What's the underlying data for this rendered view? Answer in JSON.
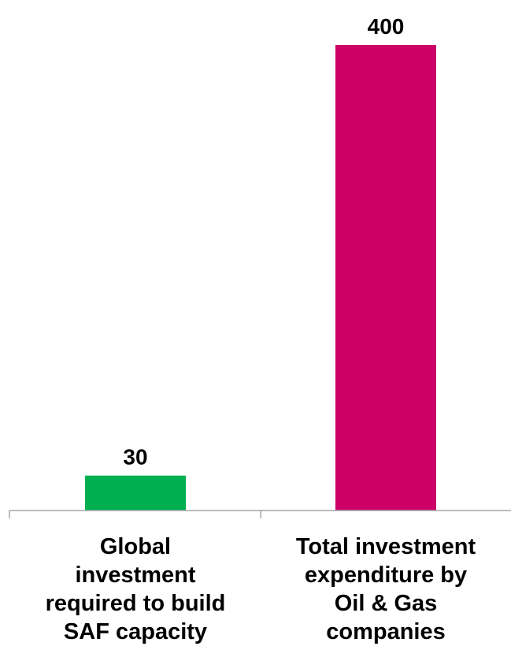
{
  "chart_data": {
    "type": "bar",
    "categories": [
      "Global investment required to build SAF capacity",
      "Total investment expenditure by Oil & Gas companies"
    ],
    "category_lines": [
      [
        "Global",
        "investment",
        "required to build",
        "SAF capacity"
      ],
      [
        "Total investment",
        "expenditure by",
        "Oil & Gas",
        "companies"
      ]
    ],
    "values": [
      30,
      400
    ],
    "data_labels": [
      "30",
      "400"
    ],
    "colors": [
      "#00b050",
      "#cc0066"
    ],
    "ylim": [
      0,
      400
    ],
    "grid": false,
    "legend": "none",
    "title": "",
    "xlabel": "",
    "ylabel": ""
  }
}
